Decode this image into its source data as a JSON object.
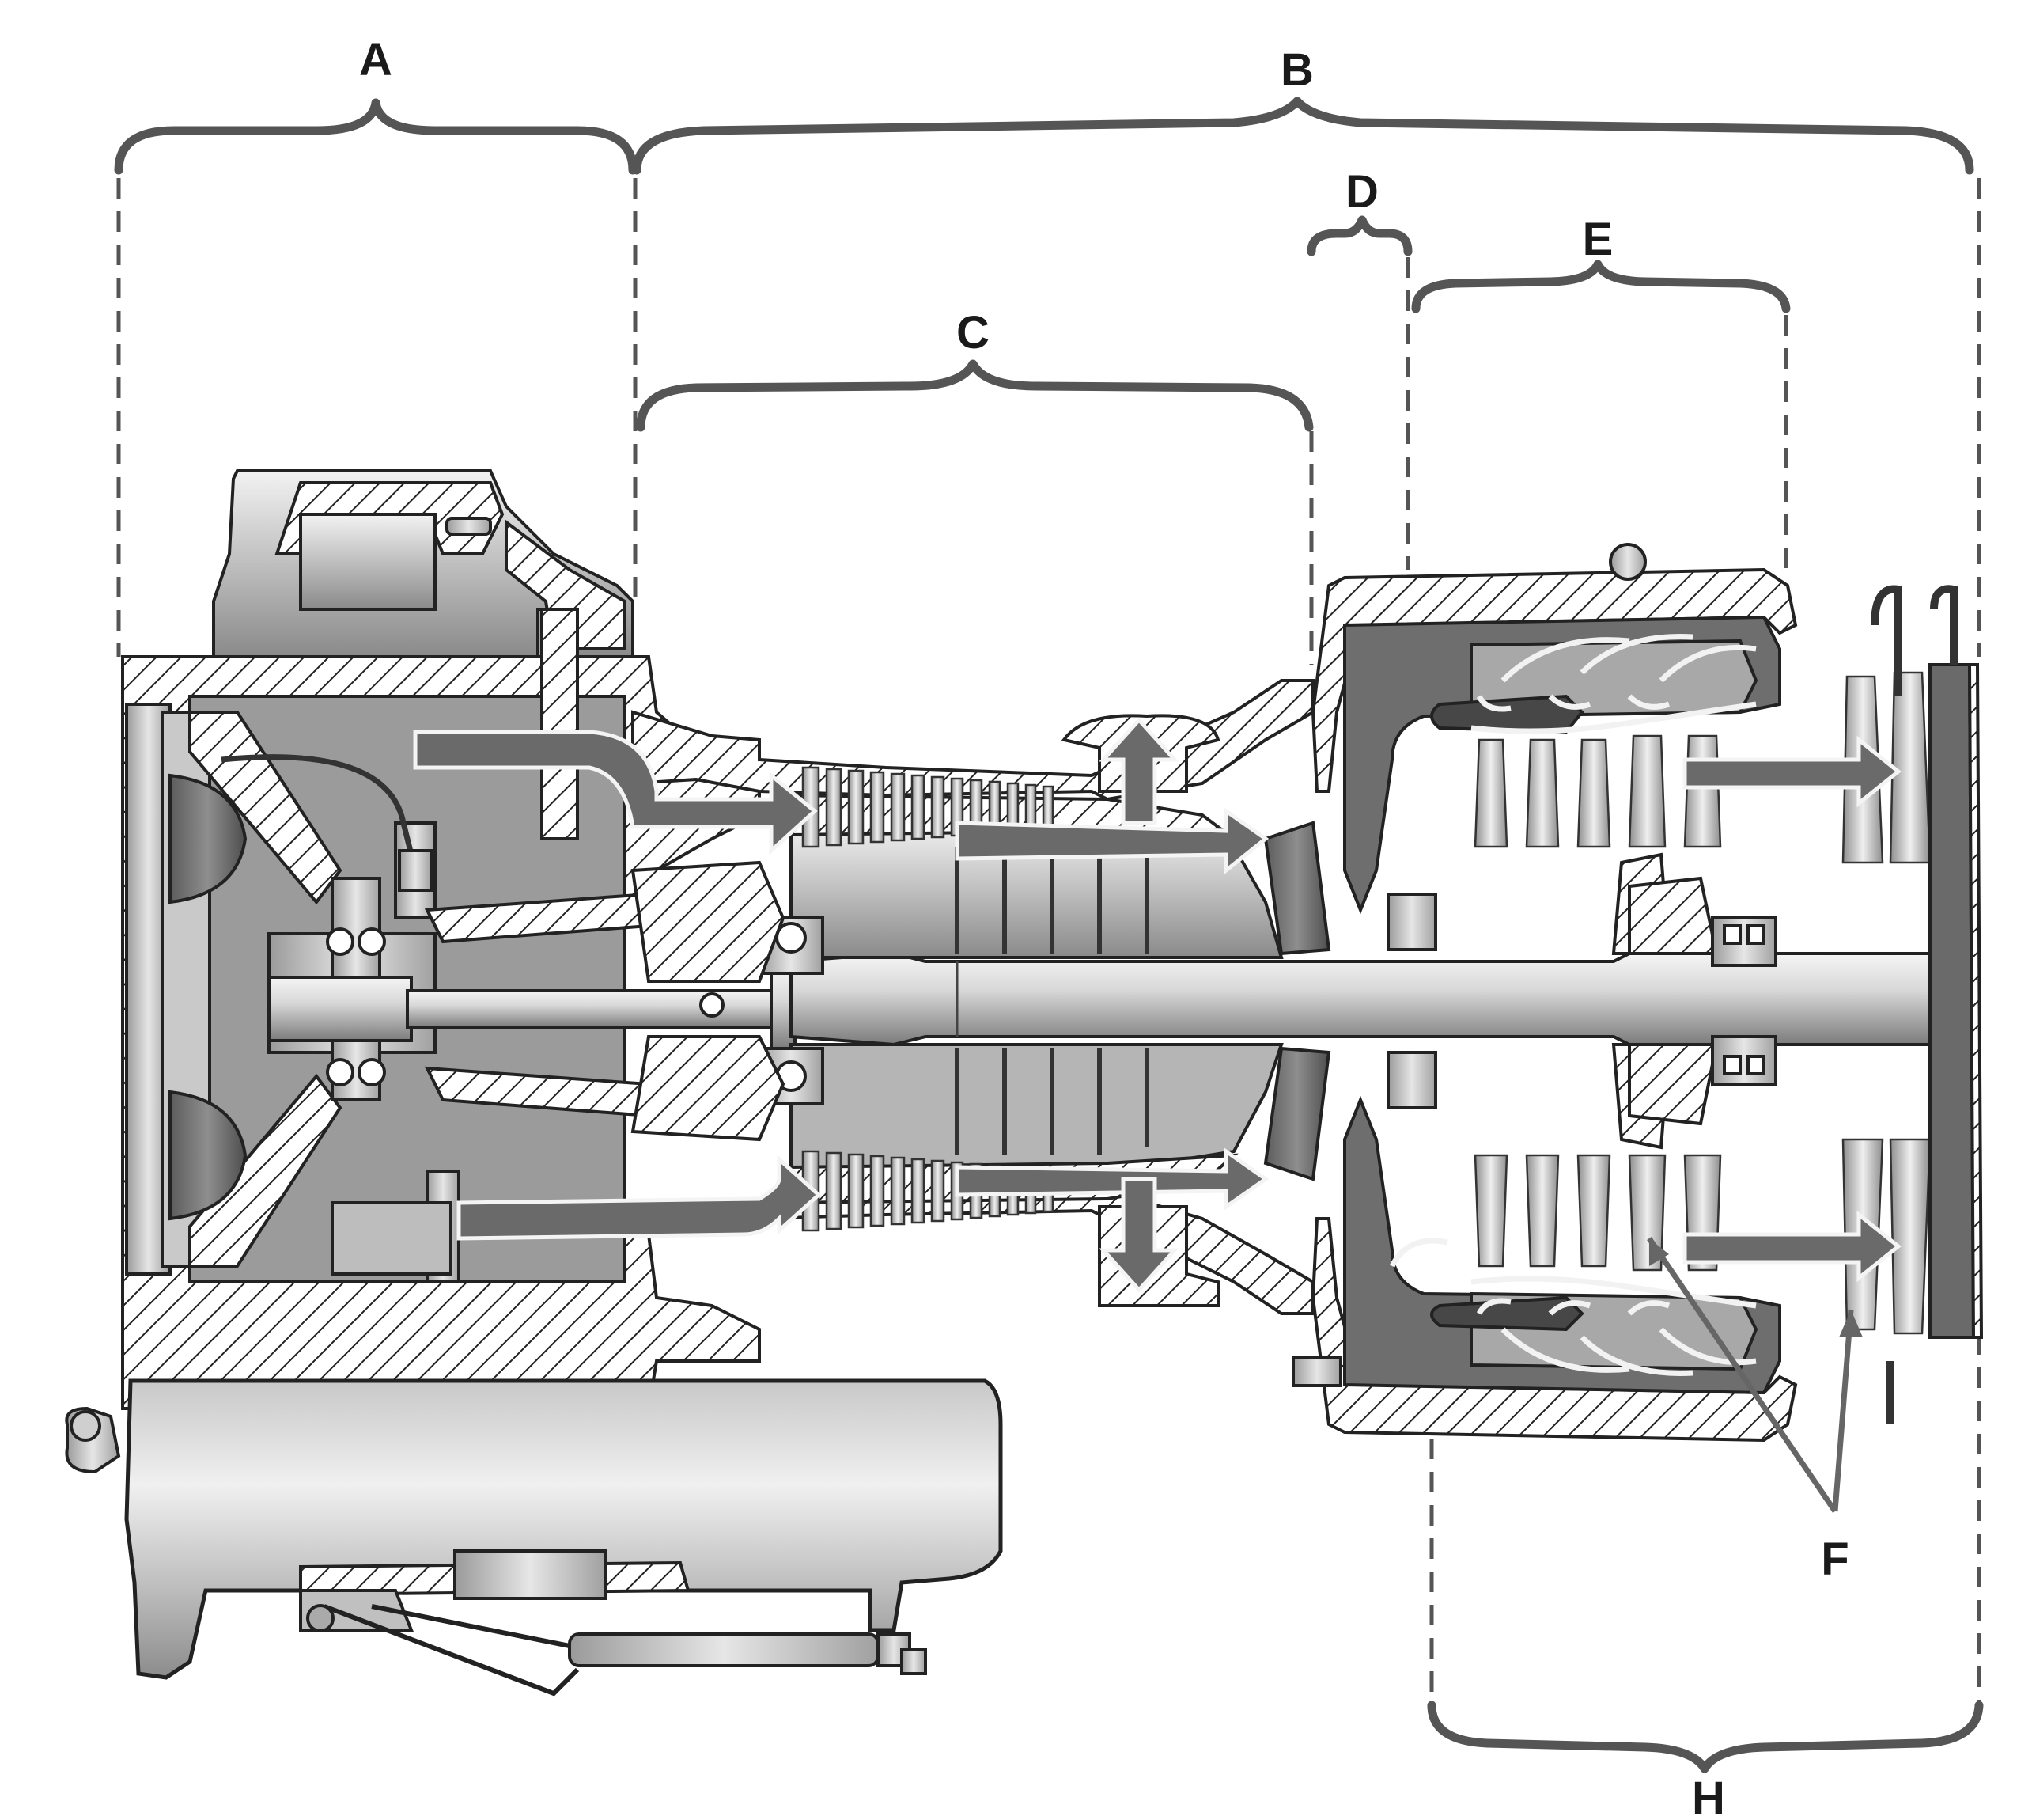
{
  "labels": {
    "a": "A",
    "b": "B",
    "c": "C",
    "d": "D",
    "e": "E",
    "f": "F",
    "h": "H"
  },
  "colors": {
    "brace": "#555555",
    "flow_arrow": "#6a6a6a",
    "outline": "#222222"
  }
}
